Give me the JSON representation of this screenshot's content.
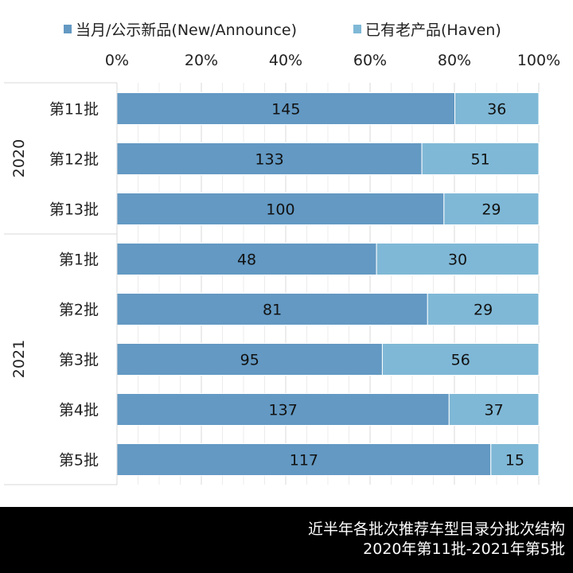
{
  "chart_data": {
    "type": "bar",
    "orientation": "horizontal",
    "stacked": "percent",
    "groups": [
      {
        "label": "2020",
        "categories": [
          "第11批",
          "第12批",
          "第13批"
        ]
      },
      {
        "label": "2021",
        "categories": [
          "第1批",
          "第2批",
          "第3批",
          "第4批",
          "第5批"
        ]
      }
    ],
    "categories": [
      "第11批",
      "第12批",
      "第13批",
      "第1批",
      "第2批",
      "第3批",
      "第4批",
      "第5批"
    ],
    "series": [
      {
        "name": "当月/公示新品(New/Announce)",
        "color": "#6399c3",
        "values": [
          145,
          133,
          100,
          48,
          81,
          95,
          137,
          117
        ]
      },
      {
        "name": "已有老产品(Haven)",
        "color": "#7fb8d6",
        "values": [
          36,
          51,
          29,
          30,
          29,
          56,
          37,
          15
        ]
      }
    ],
    "xticks": [
      "0%",
      "20%",
      "40%",
      "60%",
      "80%",
      "100%"
    ],
    "xlim": [
      0,
      100
    ],
    "legend": "top",
    "xaxis_position": "top",
    "grid": true
  },
  "footer": {
    "line1": "近半年各批次推荐车型目录分批次结构",
    "line2": "2020年第11批-2021年第5批"
  }
}
